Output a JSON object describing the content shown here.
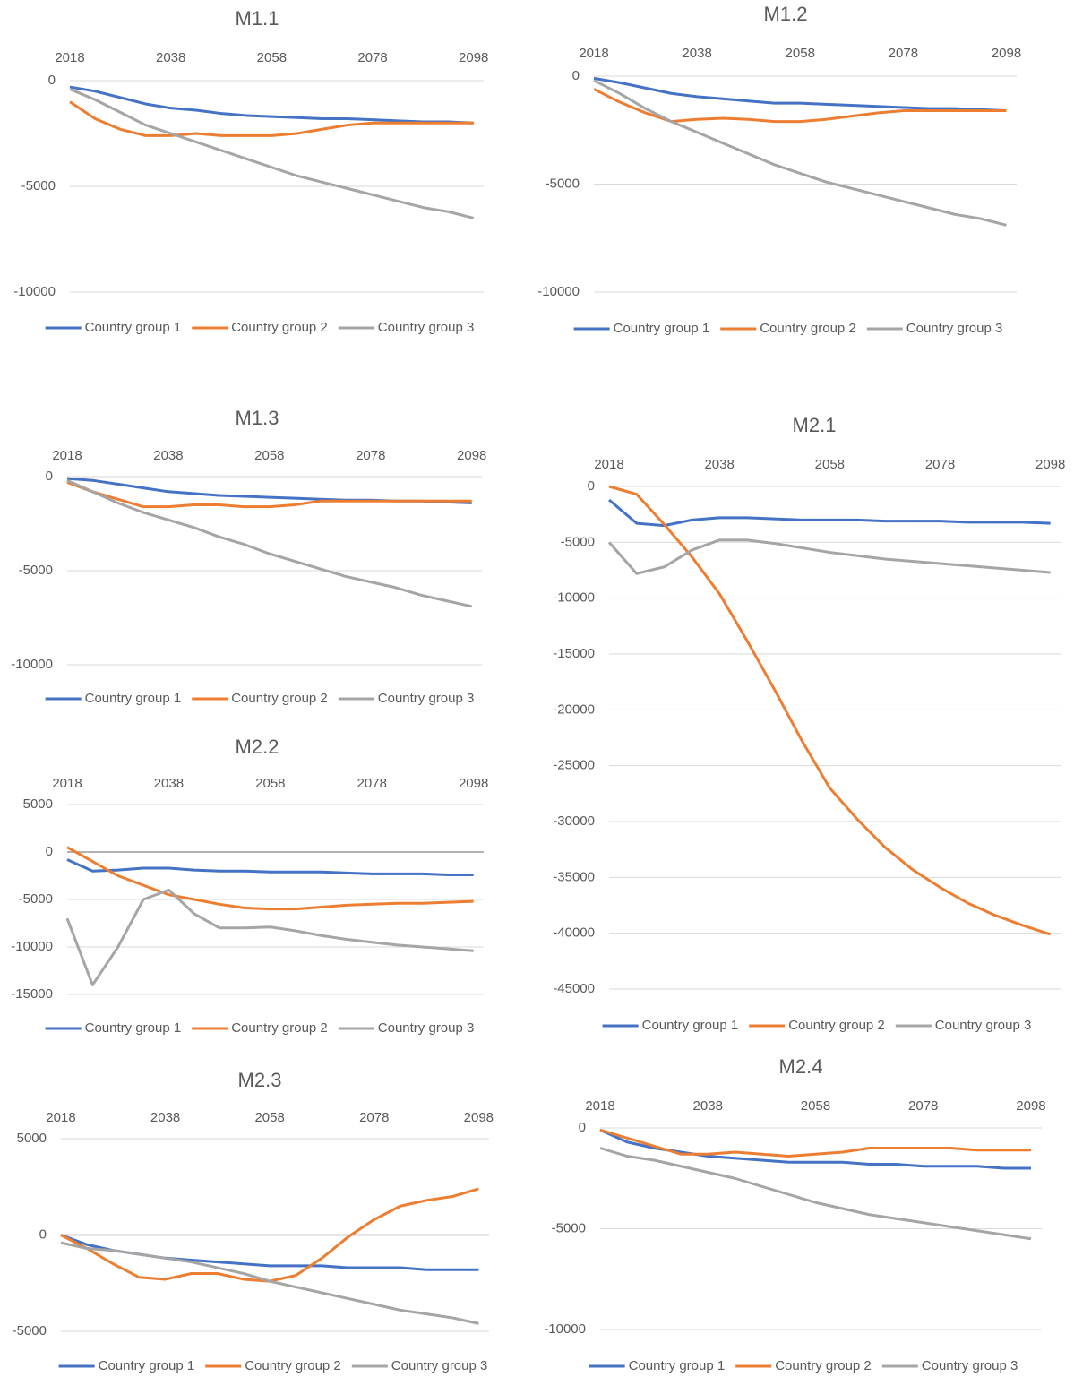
{
  "chart_data": [
    {
      "type": "line",
      "title": "M1.1",
      "x": [
        2018,
        2023,
        2028,
        2033,
        2038,
        2043,
        2048,
        2053,
        2058,
        2063,
        2068,
        2073,
        2078,
        2083,
        2088,
        2093,
        2098
      ],
      "xlim": [
        2018,
        2100
      ],
      "xticks": [
        2018,
        2038,
        2058,
        2078,
        2098
      ],
      "ylim": [
        -10000,
        0
      ],
      "yticks": [
        0,
        -5000,
        -10000
      ],
      "grid": true,
      "series": [
        {
          "name": "Country group 1",
          "color": "#4472c4",
          "values": [
            -300,
            -500,
            -800,
            -1100,
            -1300,
            -1400,
            -1550,
            -1650,
            -1700,
            -1750,
            -1800,
            -1800,
            -1850,
            -1900,
            -1950,
            -1950,
            -2000
          ]
        },
        {
          "name": "Country group 2",
          "color": "#ed7d31",
          "values": [
            -1000,
            -1800,
            -2300,
            -2600,
            -2600,
            -2500,
            -2600,
            -2600,
            -2600,
            -2500,
            -2300,
            -2100,
            -2000,
            -2000,
            -2000,
            -2000,
            -2000
          ]
        },
        {
          "name": "Country group 3",
          "color": "#a5a5a5",
          "values": [
            -400,
            -900,
            -1500,
            -2100,
            -2500,
            -2900,
            -3300,
            -3700,
            -4100,
            -4500,
            -4800,
            -5100,
            -5400,
            -5700,
            -6000,
            -6200,
            -6500
          ]
        }
      ]
    },
    {
      "type": "line",
      "title": "M1.2",
      "x": [
        2018,
        2023,
        2028,
        2033,
        2038,
        2043,
        2048,
        2053,
        2058,
        2063,
        2068,
        2073,
        2078,
        2083,
        2088,
        2093,
        2098
      ],
      "xlim": [
        2018,
        2100
      ],
      "xticks": [
        2018,
        2038,
        2058,
        2078,
        2098
      ],
      "ylim": [
        -10000,
        0
      ],
      "yticks": [
        0,
        -5000,
        -10000
      ],
      "grid": true,
      "series": [
        {
          "name": "Country group 1",
          "color": "#4472c4",
          "values": [
            -100,
            -300,
            -550,
            -800,
            -950,
            -1050,
            -1150,
            -1250,
            -1250,
            -1300,
            -1350,
            -1400,
            -1450,
            -1500,
            -1500,
            -1550,
            -1600
          ]
        },
        {
          "name": "Country group 2",
          "color": "#ed7d31",
          "values": [
            -600,
            -1200,
            -1700,
            -2100,
            -2000,
            -1950,
            -2000,
            -2100,
            -2100,
            -2000,
            -1850,
            -1700,
            -1600,
            -1600,
            -1600,
            -1600,
            -1600
          ]
        },
        {
          "name": "Country group 3",
          "color": "#a5a5a5",
          "values": [
            -200,
            -800,
            -1500,
            -2100,
            -2600,
            -3100,
            -3600,
            -4100,
            -4500,
            -4900,
            -5200,
            -5500,
            -5800,
            -6100,
            -6400,
            -6600,
            -6900
          ]
        }
      ]
    },
    {
      "type": "line",
      "title": "M1.3",
      "x": [
        2018,
        2023,
        2028,
        2033,
        2038,
        2043,
        2048,
        2053,
        2058,
        2063,
        2068,
        2073,
        2078,
        2083,
        2088,
        2093,
        2098
      ],
      "xlim": [
        2018,
        2100
      ],
      "xticks": [
        2018,
        2038,
        2058,
        2078,
        2098
      ],
      "ylim": [
        -10000,
        0
      ],
      "yticks": [
        0,
        -5000,
        -10000
      ],
      "grid": true,
      "series": [
        {
          "name": "Country group 1",
          "color": "#4472c4",
          "values": [
            -100,
            -200,
            -400,
            -600,
            -800,
            -900,
            -1000,
            -1050,
            -1100,
            -1150,
            -1200,
            -1250,
            -1250,
            -1300,
            -1300,
            -1350,
            -1400
          ]
        },
        {
          "name": "Country group 2",
          "color": "#ed7d31",
          "values": [
            -300,
            -800,
            -1200,
            -1600,
            -1600,
            -1500,
            -1500,
            -1600,
            -1600,
            -1500,
            -1300,
            -1300,
            -1300,
            -1300,
            -1300,
            -1300,
            -1300
          ]
        },
        {
          "name": "Country group 3",
          "color": "#a5a5a5",
          "values": [
            -200,
            -800,
            -1400,
            -1900,
            -2300,
            -2700,
            -3200,
            -3600,
            -4100,
            -4500,
            -4900,
            -5300,
            -5600,
            -5900,
            -6300,
            -6600,
            -6900
          ]
        }
      ]
    },
    {
      "type": "line",
      "title": "M2.1",
      "x": [
        2018,
        2023,
        2028,
        2033,
        2038,
        2043,
        2048,
        2053,
        2058,
        2063,
        2068,
        2073,
        2078,
        2083,
        2088,
        2093,
        2098
      ],
      "xlim": [
        2018,
        2100
      ],
      "xticks": [
        2018,
        2038,
        2058,
        2078,
        2098
      ],
      "ylim": [
        -45000,
        0
      ],
      "yticks": [
        0,
        -5000,
        -10000,
        -15000,
        -20000,
        -25000,
        -30000,
        -35000,
        -40000,
        -45000
      ],
      "grid": true,
      "series": [
        {
          "name": "Country group 1",
          "color": "#4472c4",
          "values": [
            -1200,
            -3300,
            -3500,
            -3000,
            -2800,
            -2800,
            -2900,
            -3000,
            -3000,
            -3000,
            -3100,
            -3100,
            -3100,
            -3200,
            -3200,
            -3200,
            -3300
          ]
        },
        {
          "name": "Country group 2",
          "color": "#ed7d31",
          "values": [
            0,
            -700,
            -3400,
            -6300,
            -9600,
            -13800,
            -18200,
            -22800,
            -27000,
            -29800,
            -32300,
            -34300,
            -35900,
            -37300,
            -38400,
            -39300,
            -40100
          ]
        },
        {
          "name": "Country group 3",
          "color": "#a5a5a5",
          "values": [
            -5000,
            -7800,
            -7200,
            -5700,
            -4800,
            -4800,
            -5100,
            -5500,
            -5900,
            -6200,
            -6500,
            -6700,
            -6900,
            -7100,
            -7300,
            -7500,
            -7700
          ]
        }
      ]
    },
    {
      "type": "line",
      "title": "M2.2",
      "x": [
        2018,
        2023,
        2028,
        2033,
        2038,
        2043,
        2048,
        2053,
        2058,
        2063,
        2068,
        2073,
        2078,
        2083,
        2088,
        2093,
        2098
      ],
      "xlim": [
        2018,
        2100
      ],
      "xticks": [
        2018,
        2038,
        2058,
        2078,
        2098
      ],
      "ylim": [
        -15000,
        5000
      ],
      "yticks": [
        5000,
        0,
        -5000,
        -10000,
        -15000
      ],
      "grid": true,
      "series": [
        {
          "name": "Country group 1",
          "color": "#4472c4",
          "values": [
            -800,
            -2000,
            -1900,
            -1700,
            -1700,
            -1900,
            -2000,
            -2000,
            -2100,
            -2100,
            -2100,
            -2200,
            -2300,
            -2300,
            -2300,
            -2400,
            -2400
          ]
        },
        {
          "name": "Country group 2",
          "color": "#ed7d31",
          "values": [
            500,
            -1000,
            -2500,
            -3500,
            -4500,
            -5000,
            -5500,
            -5900,
            -6000,
            -6000,
            -5800,
            -5600,
            -5500,
            -5400,
            -5400,
            -5300,
            -5200
          ]
        },
        {
          "name": "Country group 3",
          "color": "#a5a5a5",
          "values": [
            -7000,
            -14000,
            -10000,
            -5000,
            -4000,
            -6500,
            -8000,
            -8000,
            -7900,
            -8300,
            -8800,
            -9200,
            -9500,
            -9800,
            -10000,
            -10200,
            -10400
          ]
        }
      ]
    },
    {
      "type": "line",
      "title": "M2.3",
      "x": [
        2018,
        2023,
        2028,
        2033,
        2038,
        2043,
        2048,
        2053,
        2058,
        2063,
        2068,
        2073,
        2078,
        2083,
        2088,
        2093,
        2098
      ],
      "xlim": [
        2018,
        2100
      ],
      "xticks": [
        2018,
        2038,
        2058,
        2078,
        2098
      ],
      "ylim": [
        -5000,
        5000
      ],
      "yticks": [
        5000,
        0,
        -5000
      ],
      "grid": true,
      "series": [
        {
          "name": "Country group 1",
          "color": "#4472c4",
          "values": [
            0,
            -500,
            -800,
            -1000,
            -1200,
            -1300,
            -1400,
            -1500,
            -1600,
            -1600,
            -1600,
            -1700,
            -1700,
            -1700,
            -1800,
            -1800,
            -1800
          ]
        },
        {
          "name": "Country group 2",
          "color": "#ed7d31",
          "values": [
            0,
            -700,
            -1500,
            -2200,
            -2300,
            -2000,
            -2000,
            -2300,
            -2400,
            -2100,
            -1200,
            -100,
            800,
            1500,
            1800,
            2000,
            2400
          ]
        },
        {
          "name": "Country group 3",
          "color": "#a5a5a5",
          "values": [
            -400,
            -700,
            -800,
            -1000,
            -1200,
            -1400,
            -1700,
            -2000,
            -2400,
            -2700,
            -3000,
            -3300,
            -3600,
            -3900,
            -4100,
            -4300,
            -4600
          ]
        }
      ]
    },
    {
      "type": "line",
      "title": "M2.4",
      "x": [
        2018,
        2023,
        2028,
        2033,
        2038,
        2043,
        2048,
        2053,
        2058,
        2063,
        2068,
        2073,
        2078,
        2083,
        2088,
        2093,
        2098
      ],
      "xlim": [
        2018,
        2100
      ],
      "xticks": [
        2018,
        2038,
        2058,
        2078,
        2098
      ],
      "ylim": [
        -10000,
        0
      ],
      "yticks": [
        0,
        -5000,
        -10000
      ],
      "grid": true,
      "series": [
        {
          "name": "Country group 1",
          "color": "#4472c4",
          "values": [
            -100,
            -700,
            -1000,
            -1200,
            -1400,
            -1500,
            -1600,
            -1700,
            -1700,
            -1700,
            -1800,
            -1800,
            -1900,
            -1900,
            -1900,
            -2000,
            -2000
          ]
        },
        {
          "name": "Country group 2",
          "color": "#ed7d31",
          "values": [
            -100,
            -500,
            -900,
            -1300,
            -1300,
            -1200,
            -1300,
            -1400,
            -1300,
            -1200,
            -1000,
            -1000,
            -1000,
            -1000,
            -1100,
            -1100,
            -1100
          ]
        },
        {
          "name": "Country group 3",
          "color": "#a5a5a5",
          "values": [
            -1000,
            -1400,
            -1600,
            -1900,
            -2200,
            -2500,
            -2900,
            -3300,
            -3700,
            -4000,
            -4300,
            -4500,
            -4700,
            -4900,
            -5100,
            -5300,
            -5500
          ]
        }
      ]
    }
  ]
}
